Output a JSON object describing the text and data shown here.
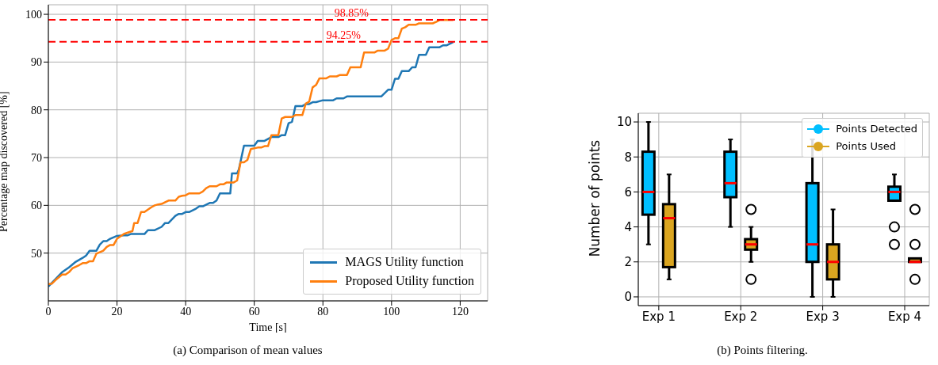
{
  "chart_data": [
    {
      "type": "line",
      "title": "(a) Comparison of mean values",
      "xlabel": "Time [s]",
      "ylabel": "Percentage map discovered [%]",
      "xlim": [
        0,
        128
      ],
      "ylim": [
        40,
        102
      ],
      "xticks": [
        0,
        20,
        40,
        60,
        80,
        100,
        120
      ],
      "yticks": [
        50,
        60,
        70,
        80,
        90,
        100
      ],
      "grid": true,
      "legend": "bottom right",
      "series": [
        {
          "name": "MAGS Utility function",
          "color": "#1f77b4",
          "x": [
            0,
            2,
            4,
            6,
            8,
            10,
            11,
            12,
            14,
            15,
            16,
            17,
            18,
            20,
            22,
            23,
            24,
            28,
            29,
            31,
            33,
            34,
            35,
            37,
            38,
            39,
            40,
            41,
            43,
            44,
            45,
            47,
            48,
            49,
            50,
            53,
            53.5,
            55,
            55.5,
            57,
            60,
            61,
            63,
            65,
            67,
            68,
            69,
            70,
            71,
            72,
            74,
            75,
            76,
            77,
            78,
            80,
            83,
            84,
            86,
            87,
            97,
            99,
            100,
            101,
            102,
            103,
            105,
            106,
            107,
            108,
            110,
            111,
            114,
            115,
            116,
            118
          ],
          "values": [
            43,
            44.5,
            46,
            47,
            48.2,
            49,
            49.5,
            50.5,
            50.5,
            51.8,
            52.5,
            52.5,
            53,
            53.6,
            53.7,
            53.7,
            54,
            54,
            54.8,
            54.8,
            55.5,
            56.3,
            56.3,
            57.8,
            58.2,
            58.2,
            58.6,
            58.6,
            59.3,
            59.8,
            59.8,
            60.5,
            60.5,
            61,
            62.5,
            62.5,
            66.7,
            66.7,
            67.5,
            72.5,
            72.5,
            73.5,
            73.5,
            74.3,
            74.3,
            74.7,
            74.7,
            77.2,
            77.5,
            80.8,
            80.8,
            81.2,
            81.2,
            81.6,
            81.6,
            82,
            82,
            82.4,
            82.4,
            82.8,
            82.8,
            84.2,
            84.2,
            86.5,
            86.5,
            88.1,
            88.1,
            88.9,
            88.9,
            91.5,
            91.5,
            93.1,
            93.1,
            93.5,
            93.5,
            94.2
          ]
        },
        {
          "name": "Proposed Utility function",
          "color": "#ff7f0e",
          "x": [
            0,
            1,
            2,
            4,
            5,
            6,
            7,
            9,
            10,
            11,
            12,
            13,
            14,
            16,
            17,
            18,
            19,
            20,
            22,
            24,
            24.5,
            25,
            26,
            27,
            28,
            30,
            31,
            32,
            33,
            35,
            37,
            38,
            39,
            40,
            41,
            44,
            45,
            46,
            47,
            49,
            50,
            51,
            52,
            54,
            55,
            56,
            57,
            58,
            59,
            61,
            62,
            63,
            64,
            65,
            67,
            68,
            69,
            71,
            72,
            74,
            75,
            76,
            77,
            78,
            79,
            81,
            82,
            84,
            85,
            87,
            88,
            91,
            92,
            95,
            96,
            98,
            99,
            100,
            101,
            102,
            103,
            104,
            105,
            107,
            108,
            112,
            113,
            114,
            118
          ],
          "values": [
            43.5,
            43.6,
            44.3,
            45.5,
            45.5,
            46,
            46.8,
            47.5,
            47.9,
            47.9,
            48.3,
            48.3,
            49.9,
            50.5,
            51.3,
            51.7,
            51.7,
            53,
            54,
            54.5,
            54.6,
            56.3,
            56.3,
            58.6,
            58.6,
            59.6,
            60,
            60.2,
            60.3,
            61,
            61,
            61.8,
            62,
            62.1,
            62.5,
            62.5,
            62.9,
            63.6,
            64,
            64,
            64.4,
            64.4,
            64.8,
            64.8,
            65.2,
            69,
            69,
            69.5,
            71.8,
            72.1,
            72.1,
            72.4,
            72.4,
            74.7,
            74.7,
            78.2,
            78.5,
            78.5,
            78.9,
            78.9,
            81.3,
            81.7,
            84.7,
            85.2,
            86.6,
            86.6,
            87,
            87,
            87.3,
            87.3,
            88.9,
            88.9,
            92,
            92,
            92.4,
            92.4,
            92.8,
            94.6,
            95,
            95,
            97,
            97.3,
            97.8,
            97.8,
            98.1,
            98.1,
            98.4,
            98.8,
            98.8
          ]
        }
      ],
      "ref_lines": [
        {
          "axis": "y",
          "value": 98.85,
          "label": "98.85%",
          "color": "#ff0000",
          "line_style": "dashed"
        },
        {
          "axis": "y",
          "value": 94.25,
          "label": "94.25%",
          "color": "#ff0000",
          "line_style": "dashed"
        }
      ]
    },
    {
      "type": "box",
      "title": "(b) Points filtering.",
      "ylabel": "Number of points",
      "categories": [
        "Exp 1",
        "Exp 2",
        "Exp 3",
        "Exp 4"
      ],
      "ylim": [
        -0.5,
        10.5
      ],
      "yticks": [
        0,
        2,
        4,
        6,
        8,
        10
      ],
      "grid": true,
      "legend": "top right",
      "series": [
        {
          "name": "Points Detected",
          "color": "#00bfff",
          "boxes": [
            {
              "low": 3,
              "q1": 4.7,
              "median": 6,
              "q3": 8.3,
              "high": 10
            },
            {
              "low": 4,
              "q1": 5.7,
              "median": 6.5,
              "q3": 8.3,
              "high": 9
            },
            {
              "low": 0,
              "q1": 2,
              "median": 3,
              "q3": 6.5,
              "high": 9
            },
            {
              "low": 5.5,
              "q1": 5.5,
              "median": 6,
              "q3": 6.3,
              "high": 7,
              "outliers": [
                4,
                3
              ]
            }
          ]
        },
        {
          "name": "Points Used",
          "color": "#daa520",
          "boxes": [
            {
              "low": 1,
              "q1": 1.7,
              "median": 4.5,
              "q3": 5.3,
              "high": 7
            },
            {
              "low": 2,
              "q1": 2.7,
              "median": 3,
              "q3": 3.3,
              "high": 4,
              "outliers": [
                5,
                1
              ]
            },
            {
              "low": 0,
              "q1": 1,
              "median": 2,
              "q3": 3,
              "high": 5
            },
            {
              "low": 2,
              "q1": 2,
              "median": 2,
              "q3": 2.2,
              "high": 2.2,
              "outliers": [
                5,
                3,
                1
              ]
            }
          ]
        }
      ]
    }
  ]
}
